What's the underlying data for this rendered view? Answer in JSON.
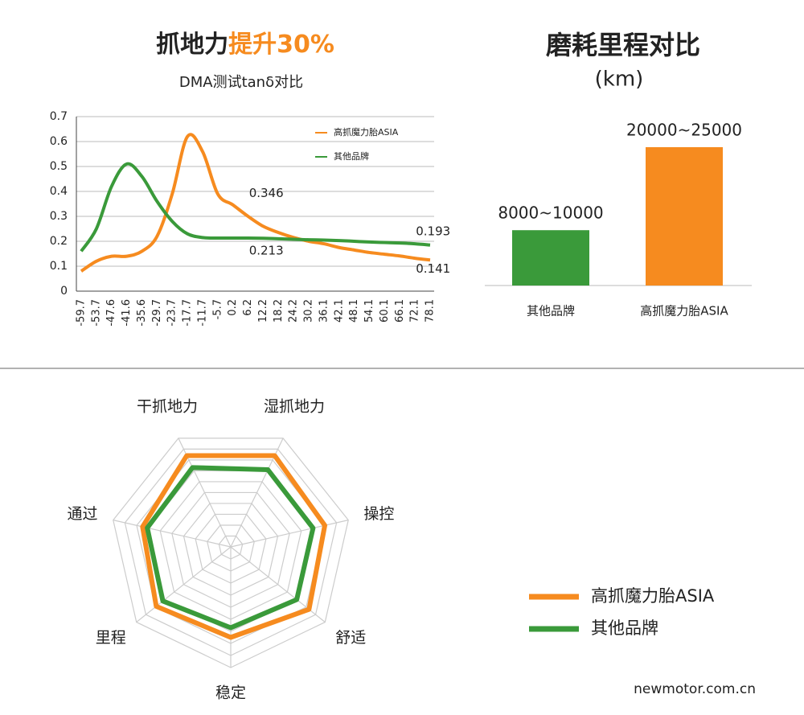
{
  "chart_data": [
    {
      "type": "line",
      "title": "抓地力",
      "title_highlight": "提升30%",
      "subtitle": "DMA测试tanδ对比",
      "categories": [
        "-59.7",
        "-53.7",
        "-47.6",
        "-41.6",
        "-35.6",
        "-29.7",
        "-23.7",
        "-17.7",
        "-11.7",
        "-5.7",
        "0.2",
        "6.2",
        "12.2",
        "18.2",
        "24.2",
        "30.2",
        "36.1",
        "42.1",
        "48.1",
        "54.1",
        "60.1",
        "66.1",
        "72.1",
        "78.1"
      ],
      "series": [
        {
          "name": "高抓魔力胎ASIA",
          "color": "#f68b1f",
          "values": [
            0.08,
            0.12,
            0.14,
            0.14,
            0.16,
            0.22,
            0.39,
            0.62,
            0.56,
            0.39,
            0.346,
            0.3,
            0.26,
            0.235,
            0.215,
            0.2,
            0.19,
            0.175,
            0.165,
            0.155,
            0.148,
            0.141,
            0.132,
            0.125
          ],
          "value_labels": [
            null,
            null,
            null,
            null,
            null,
            null,
            null,
            null,
            null,
            null,
            "0.346",
            null,
            null,
            null,
            null,
            null,
            null,
            null,
            null,
            null,
            null,
            "0.141",
            null,
            null
          ]
        },
        {
          "name": "其他品牌",
          "color": "#3a9a3a",
          "values": [
            0.16,
            0.25,
            0.42,
            0.51,
            0.46,
            0.36,
            0.28,
            0.23,
            0.215,
            0.213,
            0.213,
            0.213,
            0.212,
            0.21,
            0.208,
            0.206,
            0.205,
            0.203,
            0.2,
            0.197,
            0.195,
            0.193,
            0.19,
            0.185
          ],
          "value_labels": [
            null,
            null,
            null,
            null,
            null,
            null,
            null,
            null,
            null,
            null,
            "0.213",
            null,
            null,
            null,
            null,
            null,
            null,
            null,
            null,
            null,
            null,
            "0.193",
            null,
            null
          ]
        }
      ],
      "ylim": [
        0,
        0.7
      ],
      "yticks": [
        0,
        0.1,
        0.2,
        0.3,
        0.4,
        0.5,
        0.6,
        0.7
      ],
      "grid": true,
      "legend": "upper right"
    },
    {
      "type": "bar",
      "title": "磨耗里程对比",
      "subtitle": "(km)",
      "categories": [
        "其他品牌",
        "高抓魔力胎ASIA"
      ],
      "values": [
        [
          8000,
          10000
        ],
        [
          20000,
          25000
        ]
      ],
      "value_labels": [
        "8000~10000",
        "20000~25000"
      ],
      "colors": [
        "#3a9a3a",
        "#f68b1f"
      ]
    },
    {
      "type": "radar",
      "categories": [
        "干抓地力",
        "湿抓地力",
        "操控",
        "舒适",
        "稳定",
        "里程",
        "通过"
      ],
      "series": [
        {
          "name": "高抓魔力胎ASIA",
          "color": "#f68b1f",
          "values": [
            8.4,
            8.4,
            8.0,
            8.3,
            7.5,
            7.9,
            7.5
          ]
        },
        {
          "name": "其他品牌",
          "color": "#3a9a3a",
          "values": [
            7.3,
            7.1,
            7.0,
            7.0,
            6.7,
            7.2,
            7.1
          ]
        }
      ],
      "rlim": [
        0,
        10
      ],
      "legend": "lower right"
    }
  ],
  "watermark": "newmotor.com.cn"
}
